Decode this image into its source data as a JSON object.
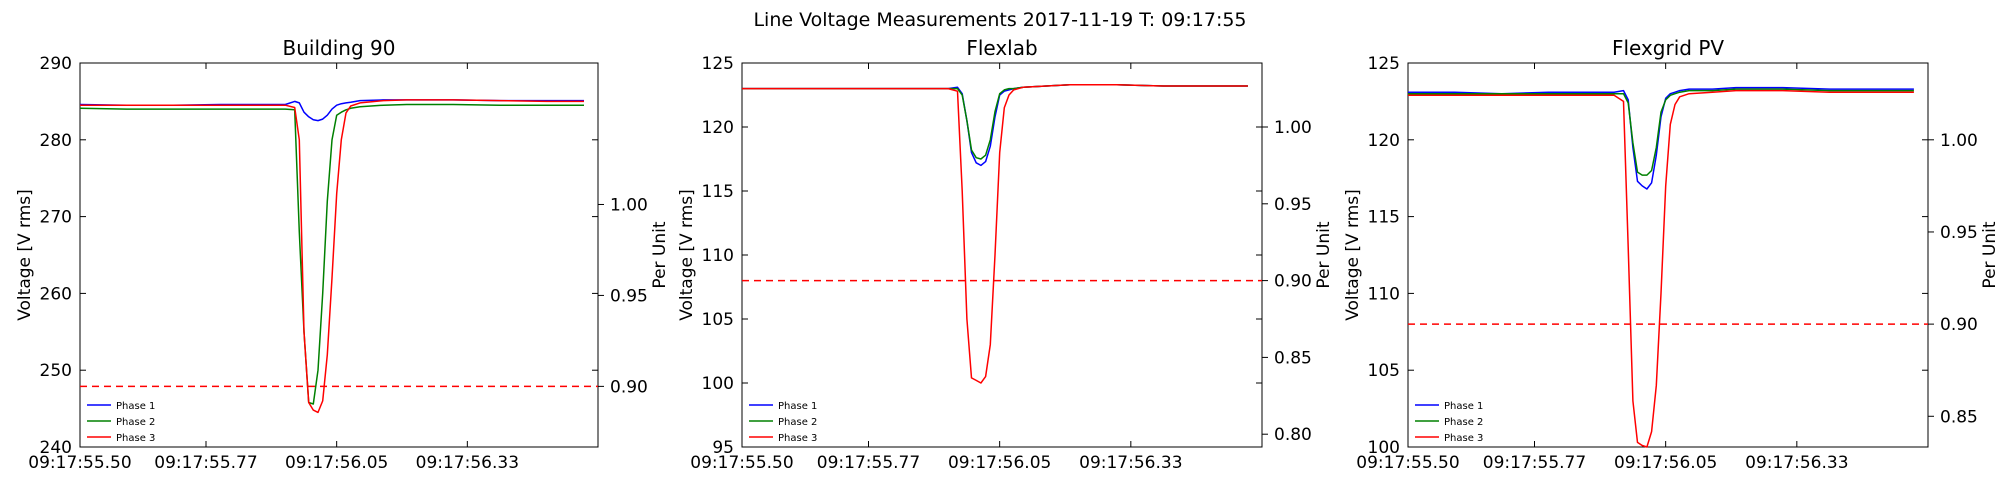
{
  "figure": {
    "suptitle": "Line Voltage Measurements 2017-11-19 T: 09:17:55",
    "colors": {
      "Phase 1": "#0000ff",
      "Phase 2": "#008000",
      "Phase 3": "#ff0000",
      "limit": "#ff0000"
    }
  },
  "chart_data": [
    {
      "type": "line",
      "title": "Building 90",
      "xlabel": "",
      "ylabel": "Voltage [V rms]",
      "y2label": "Per Unit",
      "x_ticks": [
        "09:17:55.50",
        "09:17:55.77",
        "09:17:56.05",
        "09:17:56.33"
      ],
      "xlim": [
        55.5,
        56.61
      ],
      "ylim": [
        240,
        290
      ],
      "yticks": [
        240,
        250,
        260,
        270,
        280,
        290
      ],
      "y2lim": [
        0.8666667,
        1.0777778
      ],
      "y2ticks": [
        0.9,
        0.95,
        1.0
      ],
      "y2tick_labels": [
        "0.90",
        "0.95",
        "1.00"
      ],
      "limit_line_per_unit": 0.9,
      "grid": false,
      "legend_position": "lower-left",
      "x": [
        55.5,
        55.6,
        55.7,
        55.8,
        55.9,
        55.94,
        55.96,
        55.97,
        55.98,
        55.99,
        56.0,
        56.01,
        56.02,
        56.03,
        56.04,
        56.05,
        56.06,
        56.07,
        56.08,
        56.1,
        56.15,
        56.2,
        56.3,
        56.4,
        56.5,
        56.58
      ],
      "series": [
        {
          "name": "Phase 1",
          "values": [
            284.6,
            284.5,
            284.5,
            284.6,
            284.6,
            284.6,
            285.0,
            284.8,
            283.6,
            283.0,
            282.6,
            282.5,
            282.7,
            283.2,
            284.0,
            284.5,
            284.7,
            284.8,
            284.9,
            285.1,
            285.2,
            285.2,
            285.2,
            285.1,
            285.1,
            285.1
          ]
        },
        {
          "name": "Phase 2",
          "values": [
            284.1,
            284.0,
            284.0,
            284.0,
            284.0,
            284.0,
            283.9,
            268.0,
            255.0,
            245.8,
            245.6,
            250.0,
            260.0,
            272.0,
            280.0,
            283.2,
            283.6,
            283.9,
            284.1,
            284.3,
            284.5,
            284.6,
            284.6,
            284.5,
            284.5,
            284.5
          ]
        },
        {
          "name": "Phase 3",
          "values": [
            284.5,
            284.5,
            284.5,
            284.5,
            284.5,
            284.5,
            284.2,
            280.0,
            255.0,
            245.8,
            244.8,
            244.5,
            246.0,
            252.0,
            262.0,
            273.0,
            280.0,
            283.5,
            284.4,
            284.8,
            285.1,
            285.2,
            285.2,
            285.1,
            285.0,
            285.0
          ]
        }
      ]
    },
    {
      "type": "line",
      "title": "Flexlab",
      "xlabel": "",
      "ylabel": "Voltage [V rms]",
      "y2label": "Per Unit",
      "x_ticks": [
        "09:17:55.50",
        "09:17:55.77",
        "09:17:56.05",
        "09:17:56.33"
      ],
      "xlim": [
        55.5,
        56.61
      ],
      "ylim": [
        95,
        125
      ],
      "yticks": [
        95,
        100,
        105,
        110,
        115,
        120,
        125
      ],
      "y2lim": [
        0.7916667,
        1.0416667
      ],
      "y2ticks": [
        0.8,
        0.85,
        0.9,
        0.95,
        1.0
      ],
      "y2tick_labels": [
        "0.80",
        "0.85",
        "0.90",
        "0.95",
        "1.00"
      ],
      "limit_line_per_unit": 0.9,
      "grid": false,
      "legend_position": "lower-left",
      "x": [
        55.5,
        55.6,
        55.7,
        55.8,
        55.9,
        55.94,
        55.96,
        55.97,
        55.98,
        55.99,
        56.0,
        56.01,
        56.02,
        56.03,
        56.04,
        56.05,
        56.06,
        56.07,
        56.08,
        56.1,
        56.15,
        56.2,
        56.3,
        56.4,
        56.5,
        56.58
      ],
      "series": [
        {
          "name": "Phase 1",
          "values": [
            123.0,
            123.0,
            123.0,
            123.0,
            123.0,
            123.0,
            123.1,
            122.6,
            120.5,
            118.0,
            117.2,
            117.0,
            117.3,
            118.5,
            120.8,
            122.5,
            122.8,
            122.9,
            123.0,
            123.1,
            123.2,
            123.3,
            123.3,
            123.2,
            123.2,
            123.2
          ]
        },
        {
          "name": "Phase 2",
          "values": [
            123.0,
            123.0,
            123.0,
            123.0,
            123.0,
            123.0,
            123.0,
            122.5,
            120.5,
            118.2,
            117.6,
            117.5,
            117.8,
            119.0,
            121.2,
            122.6,
            122.9,
            123.0,
            123.0,
            123.1,
            123.2,
            123.3,
            123.3,
            123.2,
            123.2,
            123.2
          ]
        },
        {
          "name": "Phase 3",
          "values": [
            123.0,
            123.0,
            123.0,
            123.0,
            123.0,
            123.0,
            122.8,
            115.0,
            105.0,
            100.4,
            100.2,
            100.0,
            100.5,
            103.0,
            110.0,
            118.0,
            121.5,
            122.5,
            122.9,
            123.1,
            123.2,
            123.3,
            123.3,
            123.2,
            123.2,
            123.2
          ]
        }
      ]
    },
    {
      "type": "line",
      "title": "Flexgrid PV",
      "xlabel": "",
      "ylabel": "Voltage [V rms]",
      "y2label": "Per Unit",
      "x_ticks": [
        "09:17:55.50",
        "09:17:55.77",
        "09:17:56.05",
        "09:17:56.33"
      ],
      "xlim": [
        55.5,
        56.61
      ],
      "ylim": [
        100,
        125
      ],
      "yticks": [
        100,
        105,
        110,
        115,
        120,
        125
      ],
      "y2lim": [
        0.8333333,
        1.0416667
      ],
      "y2ticks": [
        0.85,
        0.9,
        0.95,
        1.0
      ],
      "y2tick_labels": [
        "0.85",
        "0.90",
        "0.95",
        "1.00"
      ],
      "limit_line_per_unit": 0.9,
      "grid": false,
      "legend_position": "lower-left",
      "x": [
        55.5,
        55.6,
        55.7,
        55.8,
        55.9,
        55.94,
        55.96,
        55.97,
        55.98,
        55.99,
        56.0,
        56.01,
        56.02,
        56.03,
        56.04,
        56.05,
        56.06,
        56.07,
        56.08,
        56.1,
        56.15,
        56.2,
        56.3,
        56.4,
        56.5,
        56.58
      ],
      "series": [
        {
          "name": "Phase 1",
          "values": [
            123.1,
            123.1,
            123.0,
            123.1,
            123.1,
            123.1,
            123.2,
            122.6,
            119.5,
            117.3,
            117.0,
            116.8,
            117.2,
            119.0,
            121.5,
            122.7,
            123.0,
            123.1,
            123.2,
            123.3,
            123.3,
            123.4,
            123.4,
            123.3,
            123.3,
            123.3
          ]
        },
        {
          "name": "Phase 2",
          "values": [
            123.0,
            123.0,
            123.0,
            123.0,
            123.0,
            123.0,
            123.0,
            122.4,
            119.8,
            117.9,
            117.7,
            117.7,
            118.0,
            119.5,
            121.8,
            122.6,
            122.9,
            123.0,
            123.1,
            123.2,
            123.2,
            123.3,
            123.3,
            123.2,
            123.2,
            123.2
          ]
        },
        {
          "name": "Phase 3",
          "values": [
            122.9,
            122.9,
            122.9,
            122.9,
            122.9,
            122.9,
            122.5,
            113.0,
            103.0,
            100.3,
            100.1,
            100.0,
            101.0,
            104.0,
            110.0,
            117.0,
            121.0,
            122.3,
            122.8,
            123.0,
            123.1,
            123.2,
            123.2,
            123.1,
            123.1,
            123.1
          ]
        }
      ]
    }
  ]
}
